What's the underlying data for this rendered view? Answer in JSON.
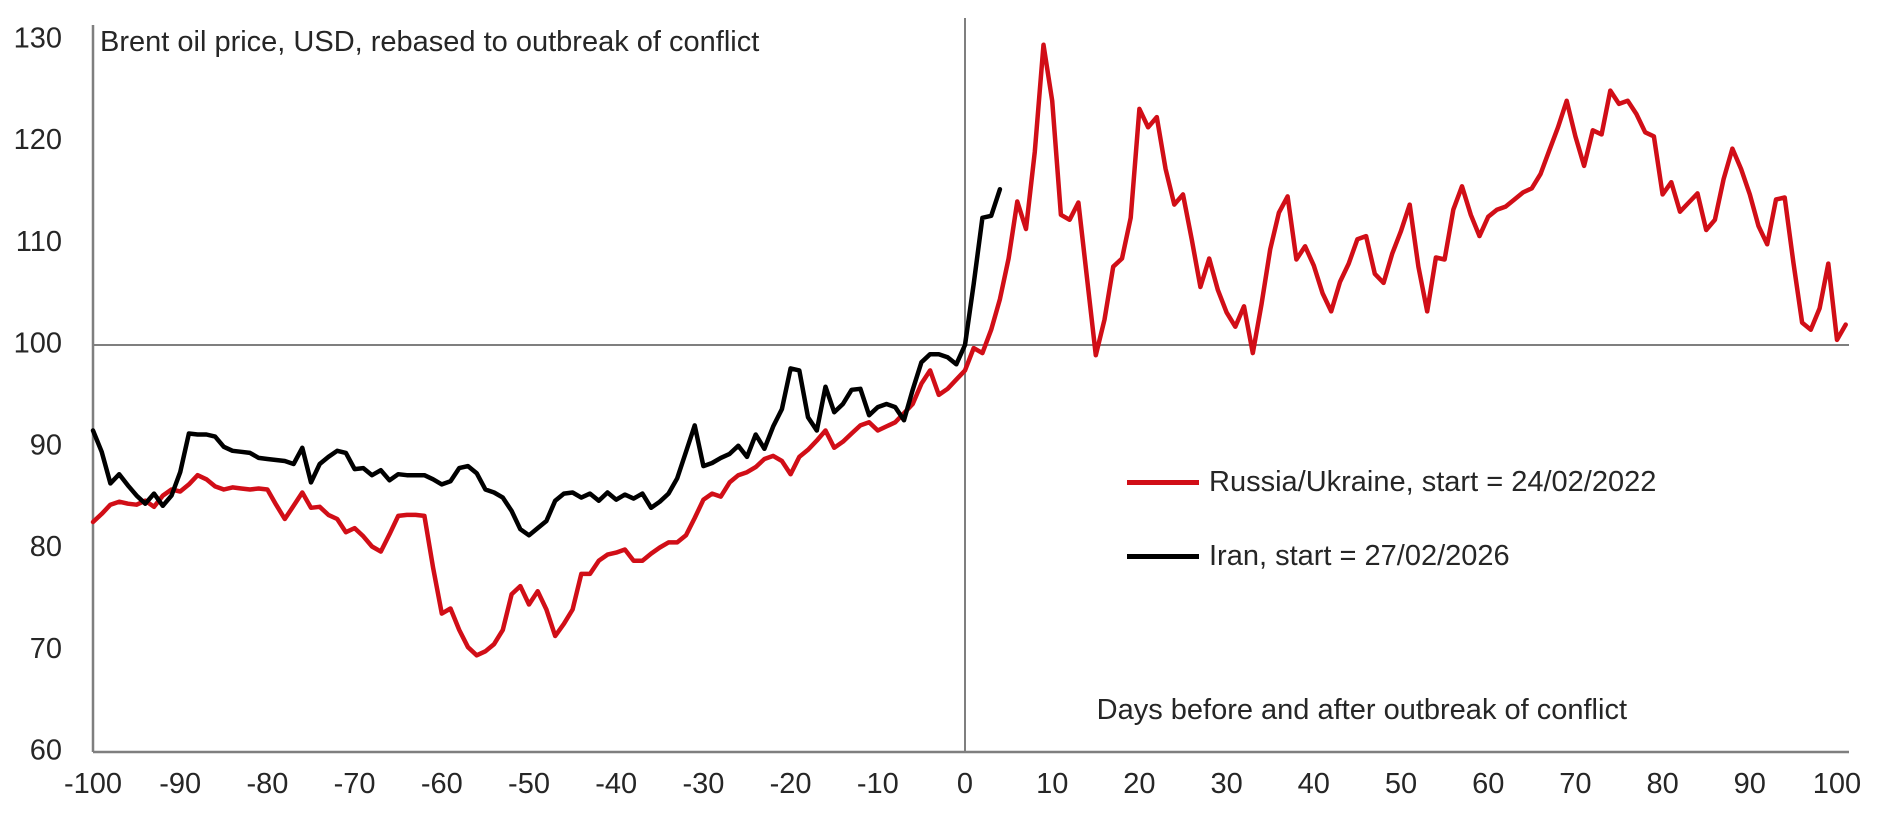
{
  "title": "Brent oil price, USD, rebased to outbreak of conflict",
  "x_axis_label": "Days before and after outbreak of conflict",
  "legend": [
    {
      "label": "Russia/Ukraine, start = 24/02/2022",
      "color": "#d10e17"
    },
    {
      "label": "Iran, start = 27/02/2026",
      "color": "#000000"
    }
  ],
  "colors": {
    "accent_red": "#d10e17",
    "series_black": "#000000",
    "axis_gray": "#7f7f7f",
    "text": "#262626",
    "background": "#ffffff"
  },
  "chart_data": {
    "type": "line",
    "title": "Brent oil price, USD, rebased to outbreak of conflict",
    "xlabel": "Days before and after outbreak of conflict",
    "ylabel": "",
    "xlim": [
      -100,
      100
    ],
    "ylim": [
      60,
      130
    ],
    "x_ticks": [
      -100,
      -90,
      -80,
      -70,
      -60,
      -50,
      -40,
      -30,
      -20,
      -10,
      0,
      10,
      20,
      30,
      40,
      50,
      60,
      70,
      80,
      90,
      100
    ],
    "y_ticks": [
      60,
      70,
      80,
      90,
      100,
      110,
      120,
      130
    ],
    "grid": false,
    "reference_lines": {
      "horizontal_y": 100,
      "vertical_x": 0
    },
    "legend_position": "right-middle",
    "series": [
      {
        "name": "Russia/Ukraine, start = 24/02/2022",
        "color": "#d10e17",
        "x_start": -100,
        "x_step": 1,
        "values": [
          82.6,
          83.4,
          84.3,
          84.6,
          84.4,
          84.3,
          84.7,
          84.1,
          85.2,
          85.8,
          85.6,
          86.3,
          87.2,
          86.8,
          86.1,
          85.8,
          86.0,
          85.9,
          85.8,
          85.9,
          85.8,
          84.3,
          82.9,
          84.2,
          85.5,
          84.0,
          84.1,
          83.3,
          82.9,
          81.6,
          82.0,
          81.2,
          80.2,
          79.7,
          81.4,
          83.2,
          83.3,
          83.3,
          83.2,
          78.1,
          73.6,
          74.1,
          72.0,
          70.3,
          69.5,
          69.9,
          70.6,
          72.0,
          75.5,
          76.3,
          74.5,
          75.8,
          74.0,
          71.4,
          72.6,
          74.0,
          77.5,
          77.5,
          78.8,
          79.4,
          79.6,
          79.9,
          78.8,
          78.8,
          79.5,
          80.1,
          80.6,
          80.6,
          81.3,
          83.0,
          84.8,
          85.4,
          85.1,
          86.5,
          87.2,
          87.5,
          88.0,
          88.8,
          89.1,
          88.6,
          87.3,
          89.0,
          89.7,
          90.6,
          91.6,
          89.9,
          90.5,
          91.3,
          92.1,
          92.4,
          91.6,
          92.0,
          92.4,
          93.3,
          94.2,
          96.2,
          97.5,
          95.1,
          95.7,
          96.6,
          97.5,
          99.7,
          99.2,
          101.5,
          104.5,
          108.5,
          114.1,
          111.4,
          119.0,
          129.5,
          124.0,
          112.8,
          112.3,
          114.0,
          106.5,
          99.0,
          102.5,
          107.7,
          108.5,
          112.5,
          123.2,
          121.4,
          122.4,
          117.3,
          113.8,
          114.8,
          110.4,
          105.7,
          108.5,
          105.4,
          103.2,
          101.8,
          103.8,
          99.2,
          104.0,
          109.4,
          113.0,
          114.6,
          108.4,
          109.7,
          107.8,
          105.1,
          103.3,
          106.2,
          108.0,
          110.4,
          110.7,
          107.0,
          106.1,
          109.0,
          111.2,
          113.8,
          107.7,
          103.3,
          108.6,
          108.4,
          113.3,
          115.6,
          112.8,
          110.7,
          112.6,
          113.3,
          113.6,
          114.3,
          115.0,
          115.4,
          116.8,
          119.1,
          121.4,
          124.0,
          120.5,
          117.6,
          121.1,
          120.7,
          125.0,
          123.7,
          124.0,
          122.7,
          120.9,
          120.5,
          114.8,
          116.0,
          113.1,
          114.0,
          114.9,
          111.3,
          112.3,
          116.3,
          119.3,
          117.3,
          114.8,
          111.7,
          109.9,
          114.3,
          114.5,
          108.1,
          102.2,
          101.5,
          103.6,
          108.0,
          100.5,
          102.0
        ]
      },
      {
        "name": "Iran, start = 27/02/2026",
        "color": "#000000",
        "x_start": -100,
        "x_step": 1,
        "values": [
          91.6,
          89.5,
          86.4,
          87.3,
          86.2,
          85.2,
          84.4,
          85.4,
          84.2,
          85.2,
          87.5,
          91.3,
          91.2,
          91.2,
          91.0,
          90.0,
          89.6,
          89.5,
          89.4,
          88.9,
          88.8,
          88.7,
          88.6,
          88.3,
          89.9,
          86.5,
          88.3,
          89.0,
          89.6,
          89.4,
          87.8,
          87.9,
          87.2,
          87.7,
          86.7,
          87.3,
          87.2,
          87.2,
          87.2,
          86.8,
          86.3,
          86.6,
          87.9,
          88.1,
          87.4,
          85.8,
          85.5,
          85.0,
          83.7,
          81.9,
          81.3,
          82.0,
          82.7,
          84.7,
          85.4,
          85.5,
          85.0,
          85.4,
          84.7,
          85.5,
          84.8,
          85.3,
          84.9,
          85.4,
          84.0,
          84.6,
          85.4,
          86.9,
          89.5,
          92.1,
          88.1,
          88.4,
          88.9,
          89.3,
          90.1,
          89.0,
          91.2,
          89.8,
          92.0,
          93.7,
          97.7,
          97.5,
          92.9,
          91.6,
          95.9,
          93.4,
          94.2,
          95.6,
          95.7,
          93.1,
          93.9,
          94.2,
          93.9,
          92.6,
          95.6,
          98.3,
          99.1,
          99.1,
          98.8,
          98.1,
          100.0,
          106.0,
          112.5,
          112.7,
          115.3
        ]
      }
    ]
  }
}
